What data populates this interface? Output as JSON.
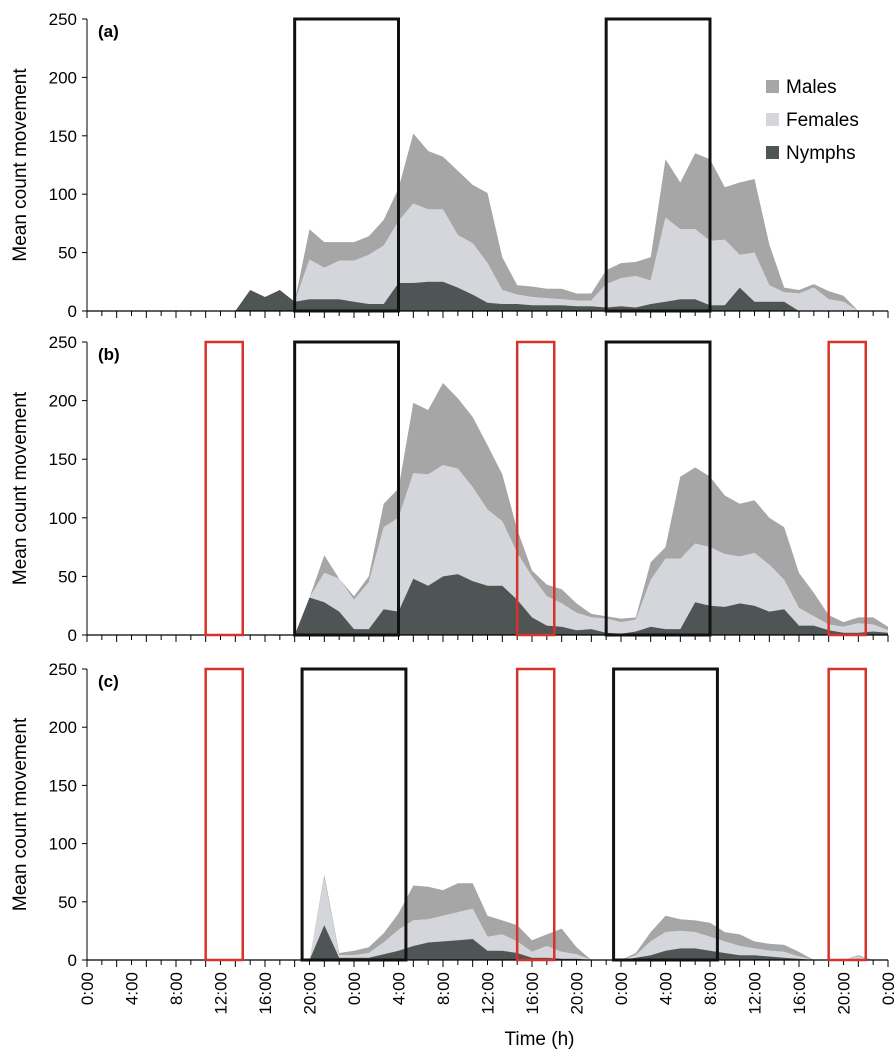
{
  "chart_data": {
    "type": "area",
    "stacked": true,
    "xlabel": "Time (h)",
    "ylabel": "Mean count movement",
    "ylim": [
      0,
      250
    ],
    "yticks": [
      0,
      50,
      100,
      150,
      200,
      250
    ],
    "x_ticks": [
      "0:00",
      "4:00",
      "8:00",
      "12:00",
      "16:00",
      "20:00",
      "0:00",
      "4:00",
      "8:00",
      "12:00",
      "16:00",
      "20:00",
      "0:00",
      "4:00",
      "8:00",
      "12:00",
      "16:00",
      "20:00",
      "0:00"
    ],
    "x_unit": "hours from start (2-h bins, 0-108)",
    "legend": {
      "position": "top-right",
      "entries": [
        {
          "name": "Males",
          "color": "#a6a6a6"
        },
        {
          "name": "Females",
          "color": "#d4d6db"
        },
        {
          "name": "Nymphs",
          "color": "#4f5554"
        }
      ]
    },
    "colors": {
      "males": "#a6a6a6",
      "females": "#d4d6db",
      "nymphs": "#4f5554",
      "dark_box": "#111111",
      "red_box": "#d6332a"
    },
    "panels": [
      {
        "label": "(a)",
        "dark_boxes": [
          [
            28,
            42
          ],
          [
            70,
            84
          ]
        ],
        "red_boxes": [],
        "x": [
          0,
          2,
          4,
          6,
          8,
          10,
          12,
          14,
          16,
          18,
          20,
          22,
          24,
          26,
          28,
          30,
          32,
          34,
          36,
          38,
          40,
          42,
          44,
          46,
          48,
          50,
          52,
          54,
          56,
          58,
          60,
          62,
          64,
          66,
          68,
          70,
          72,
          74,
          76,
          78,
          80,
          82,
          84,
          86,
          88,
          90,
          92,
          94,
          96,
          98,
          100,
          102,
          104,
          106,
          108
        ],
        "nymphs": [
          0,
          0,
          0,
          0,
          0,
          0,
          0,
          0,
          0,
          0,
          0,
          18,
          12,
          18,
          8,
          10,
          10,
          10,
          8,
          6,
          6,
          24,
          24,
          25,
          25,
          20,
          14,
          7,
          6,
          6,
          5,
          5,
          5,
          4,
          4,
          3,
          4,
          3,
          6,
          8,
          10,
          10,
          5,
          5,
          20,
          8,
          8,
          8,
          0,
          0,
          0,
          0,
          0,
          0,
          0
        ],
        "females": [
          0,
          0,
          0,
          0,
          0,
          0,
          0,
          0,
          0,
          0,
          0,
          0,
          0,
          0,
          0,
          34,
          27,
          33,
          35,
          42,
          50,
          53,
          68,
          62,
          62,
          45,
          44,
          34,
          12,
          8,
          7,
          6,
          5,
          5,
          5,
          20,
          24,
          27,
          20,
          72,
          60,
          60,
          55,
          56,
          28,
          42,
          14,
          8,
          15,
          20,
          10,
          8,
          0,
          0,
          0
        ],
        "males": [
          0,
          0,
          0,
          0,
          0,
          0,
          0,
          0,
          0,
          0,
          0,
          0,
          0,
          0,
          0,
          26,
          22,
          16,
          16,
          16,
          22,
          28,
          60,
          50,
          45,
          55,
          50,
          60,
          28,
          8,
          9,
          8,
          9,
          6,
          6,
          12,
          13,
          12,
          20,
          50,
          40,
          65,
          70,
          45,
          62,
          63,
          35,
          4,
          3,
          3,
          7,
          5,
          0,
          0,
          0
        ]
      },
      {
        "label": "(b)",
        "dark_boxes": [
          [
            28,
            42
          ],
          [
            70,
            84
          ]
        ],
        "red_boxes": [
          [
            16,
            21
          ],
          [
            58,
            63
          ],
          [
            100,
            105
          ]
        ],
        "x": [
          0,
          2,
          4,
          6,
          8,
          10,
          12,
          14,
          16,
          18,
          20,
          22,
          24,
          26,
          28,
          30,
          32,
          34,
          36,
          38,
          40,
          42,
          44,
          46,
          48,
          50,
          52,
          54,
          56,
          58,
          60,
          62,
          64,
          66,
          68,
          70,
          72,
          74,
          76,
          78,
          80,
          82,
          84,
          86,
          88,
          90,
          92,
          94,
          96,
          98,
          100,
          102,
          104,
          106,
          108
        ],
        "nymphs": [
          0,
          0,
          0,
          0,
          0,
          0,
          0,
          0,
          0,
          0,
          0,
          0,
          0,
          0,
          0,
          32,
          28,
          20,
          5,
          5,
          22,
          20,
          48,
          42,
          50,
          52,
          46,
          42,
          42,
          30,
          15,
          8,
          7,
          4,
          5,
          2,
          1,
          3,
          7,
          5,
          5,
          28,
          25,
          24,
          27,
          25,
          20,
          22,
          8,
          8,
          4,
          2,
          2,
          3,
          2
        ],
        "females": [
          0,
          0,
          0,
          0,
          0,
          0,
          0,
          0,
          0,
          0,
          0,
          0,
          0,
          0,
          0,
          0,
          25,
          28,
          25,
          40,
          70,
          80,
          90,
          95,
          95,
          90,
          80,
          65,
          55,
          40,
          35,
          25,
          20,
          15,
          10,
          12,
          10,
          10,
          40,
          60,
          60,
          50,
          50,
          45,
          40,
          45,
          40,
          25,
          15,
          8,
          5,
          5,
          8,
          6,
          2
        ],
        "males": [
          0,
          0,
          0,
          0,
          0,
          0,
          0,
          0,
          0,
          0,
          0,
          0,
          0,
          0,
          0,
          0,
          15,
          0,
          3,
          5,
          20,
          25,
          60,
          55,
          70,
          60,
          60,
          55,
          40,
          20,
          5,
          10,
          12,
          8,
          3,
          2,
          3,
          2,
          15,
          10,
          70,
          65,
          60,
          50,
          45,
          45,
          40,
          45,
          30,
          20,
          8,
          4,
          5,
          6,
          3
        ]
      },
      {
        "label": "(c)",
        "dark_boxes": [
          [
            29,
            43
          ],
          [
            71,
            85
          ]
        ],
        "red_boxes": [
          [
            16,
            21
          ],
          [
            58,
            63
          ],
          [
            100,
            105
          ]
        ],
        "x": [
          0,
          2,
          4,
          6,
          8,
          10,
          12,
          14,
          16,
          18,
          20,
          22,
          24,
          26,
          28,
          30,
          32,
          34,
          36,
          38,
          40,
          42,
          44,
          46,
          48,
          50,
          52,
          54,
          56,
          58,
          60,
          62,
          64,
          66,
          68,
          70,
          72,
          74,
          76,
          78,
          80,
          82,
          84,
          86,
          88,
          90,
          92,
          94,
          96,
          98,
          100,
          102,
          104,
          106,
          108
        ],
        "nymphs": [
          0,
          0,
          0,
          0,
          0,
          0,
          0,
          0,
          0,
          0,
          0,
          0,
          0,
          0,
          0,
          0,
          30,
          2,
          2,
          2,
          5,
          8,
          12,
          15,
          16,
          17,
          18,
          8,
          8,
          6,
          2,
          2,
          1,
          1,
          0,
          0,
          0,
          2,
          4,
          8,
          10,
          10,
          8,
          6,
          4,
          4,
          3,
          2,
          1,
          0,
          0,
          0,
          1,
          0,
          0
        ],
        "females": [
          0,
          0,
          0,
          0,
          0,
          0,
          0,
          0,
          0,
          0,
          0,
          0,
          0,
          0,
          0,
          0,
          40,
          2,
          2,
          4,
          10,
          18,
          22,
          20,
          22,
          24,
          26,
          12,
          14,
          10,
          5,
          10,
          6,
          4,
          0,
          0,
          0,
          2,
          12,
          16,
          15,
          14,
          12,
          10,
          8,
          6,
          5,
          5,
          2,
          0,
          0,
          0,
          2,
          0,
          0
        ],
        "males": [
          0,
          0,
          0,
          0,
          0,
          0,
          0,
          0,
          0,
          0,
          0,
          0,
          0,
          0,
          0,
          0,
          3,
          2,
          4,
          5,
          8,
          14,
          30,
          28,
          22,
          25,
          22,
          18,
          12,
          14,
          10,
          10,
          20,
          6,
          0,
          0,
          0,
          2,
          8,
          14,
          10,
          10,
          12,
          8,
          10,
          6,
          6,
          6,
          4,
          0,
          0,
          0,
          1,
          0,
          0
        ]
      }
    ]
  }
}
